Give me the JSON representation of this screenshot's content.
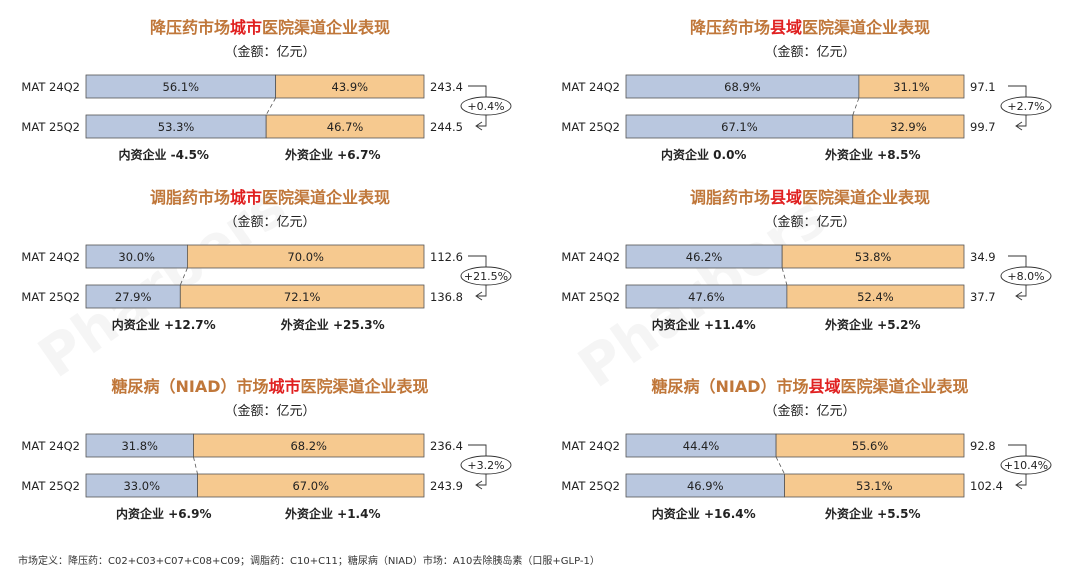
{
  "unit_label": "（金额：亿元）",
  "footnote": "市场定义：降压药：C02+C03+C07+C08+C09；调脂药：C10+C11；糖尿病（NIAD）市场：A10去除胰岛素（口服+GLP-1）",
  "watermark": "Pharbers",
  "colors": {
    "domestic": "#b9c7df",
    "foreign": "#f6c98f",
    "title": "#c0773a",
    "highlight": "#e02020"
  },
  "chart_data": [
    {
      "type": "bar",
      "title_pre": "降压药市场",
      "title_hl": "城市",
      "title_post": "医院渠道企业表现",
      "categories": [
        "MAT 24Q2",
        "MAT 25Q2"
      ],
      "series": [
        {
          "name": "内资企业",
          "values": [
            "56.1%",
            "53.3%"
          ],
          "share": [
            56.1,
            53.3
          ]
        },
        {
          "name": "外资企业",
          "values": [
            "43.9%",
            "46.7%"
          ],
          "share": [
            43.9,
            46.7
          ]
        }
      ],
      "totals": [
        "243.4",
        "244.5"
      ],
      "growth": "+0.4%",
      "domestic_growth": "内资企业 -4.5%",
      "foreign_growth": "外资企业 +6.7%"
    },
    {
      "type": "bar",
      "title_pre": "降压药市场",
      "title_hl": "县域",
      "title_post": "医院渠道企业表现",
      "categories": [
        "MAT 24Q2",
        "MAT 25Q2"
      ],
      "series": [
        {
          "name": "内资企业",
          "values": [
            "68.9%",
            "67.1%"
          ],
          "share": [
            68.9,
            67.1
          ]
        },
        {
          "name": "外资企业",
          "values": [
            "31.1%",
            "32.9%"
          ],
          "share": [
            31.1,
            32.9
          ]
        }
      ],
      "totals": [
        "97.1",
        "99.7"
      ],
      "growth": "+2.7%",
      "domestic_growth": "内资企业 0.0%",
      "foreign_growth": "外资企业 +8.5%"
    },
    {
      "type": "bar",
      "title_pre": "调脂药市场",
      "title_hl": "城市",
      "title_post": "医院渠道企业表现",
      "categories": [
        "MAT 24Q2",
        "MAT 25Q2"
      ],
      "series": [
        {
          "name": "内资企业",
          "values": [
            "30.0%",
            "27.9%"
          ],
          "share": [
            30.0,
            27.9
          ]
        },
        {
          "name": "外资企业",
          "values": [
            "70.0%",
            "72.1%"
          ],
          "share": [
            70.0,
            72.1
          ]
        }
      ],
      "totals": [
        "112.6",
        "136.8"
      ],
      "growth": "+21.5%",
      "domestic_growth": "内资企业 +12.7%",
      "foreign_growth": "外资企业 +25.3%"
    },
    {
      "type": "bar",
      "title_pre": "调脂药市场",
      "title_hl": "县域",
      "title_post": "医院渠道企业表现",
      "categories": [
        "MAT 24Q2",
        "MAT 25Q2"
      ],
      "series": [
        {
          "name": "内资企业",
          "values": [
            "46.2%",
            "47.6%"
          ],
          "share": [
            46.2,
            47.6
          ]
        },
        {
          "name": "外资企业",
          "values": [
            "53.8%",
            "52.4%"
          ],
          "share": [
            53.8,
            52.4
          ]
        }
      ],
      "totals": [
        "34.9",
        "37.7"
      ],
      "growth": "+8.0%",
      "domestic_growth": "内资企业 +11.4%",
      "foreign_growth": "外资企业 +5.2%"
    },
    {
      "type": "bar",
      "title_pre": "糖尿病（NIAD）市场",
      "title_hl": "城市",
      "title_post": "医院渠道企业表现",
      "categories": [
        "MAT 24Q2",
        "MAT 25Q2"
      ],
      "series": [
        {
          "name": "内资企业",
          "values": [
            "31.8%",
            "33.0%"
          ],
          "share": [
            31.8,
            33.0
          ]
        },
        {
          "name": "外资企业",
          "values": [
            "68.2%",
            "67.0%"
          ],
          "share": [
            68.2,
            67.0
          ]
        }
      ],
      "totals": [
        "236.4",
        "243.9"
      ],
      "growth": "+3.2%",
      "domestic_growth": "内资企业 +6.9%",
      "foreign_growth": "外资企业 +1.4%"
    },
    {
      "type": "bar",
      "title_pre": "糖尿病（NIAD）市场",
      "title_hl": "县域",
      "title_post": "医院渠道企业表现",
      "categories": [
        "MAT 24Q2",
        "MAT 25Q2"
      ],
      "series": [
        {
          "name": "内资企业",
          "values": [
            "44.4%",
            "46.9%"
          ],
          "share": [
            44.4,
            46.9
          ]
        },
        {
          "name": "外资企业",
          "values": [
            "55.6%",
            "53.1%"
          ],
          "share": [
            55.6,
            53.1
          ]
        }
      ],
      "totals": [
        "92.8",
        "102.4"
      ],
      "growth": "+10.4%",
      "domestic_growth": "内资企业 +16.4%",
      "foreign_growth": "外资企业 +5.5%"
    }
  ]
}
